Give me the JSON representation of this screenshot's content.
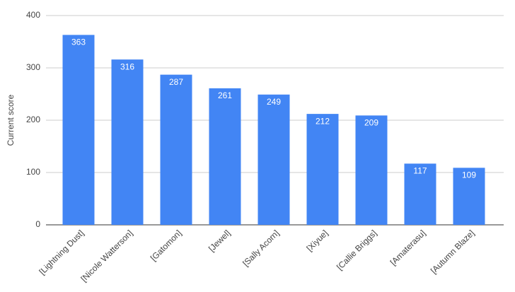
{
  "chart_data": {
    "type": "bar",
    "y_label": "Current score",
    "categories": [
      "[Lightning Dust]",
      "[Nicole Watterson]",
      "[Gatomon]",
      "[Jewel]",
      "[Sally Acorn]",
      "[Xiyue]",
      "[Callie Briggs]",
      "[Amaterasu]",
      "[Autumn Blaze]"
    ],
    "values": [
      363,
      316,
      287,
      261,
      249,
      212,
      209,
      117,
      109
    ],
    "color": "#4285f4",
    "ylim": [
      0,
      400
    ],
    "yticks": [
      0,
      100,
      200,
      300,
      400
    ],
    "grid": true
  }
}
